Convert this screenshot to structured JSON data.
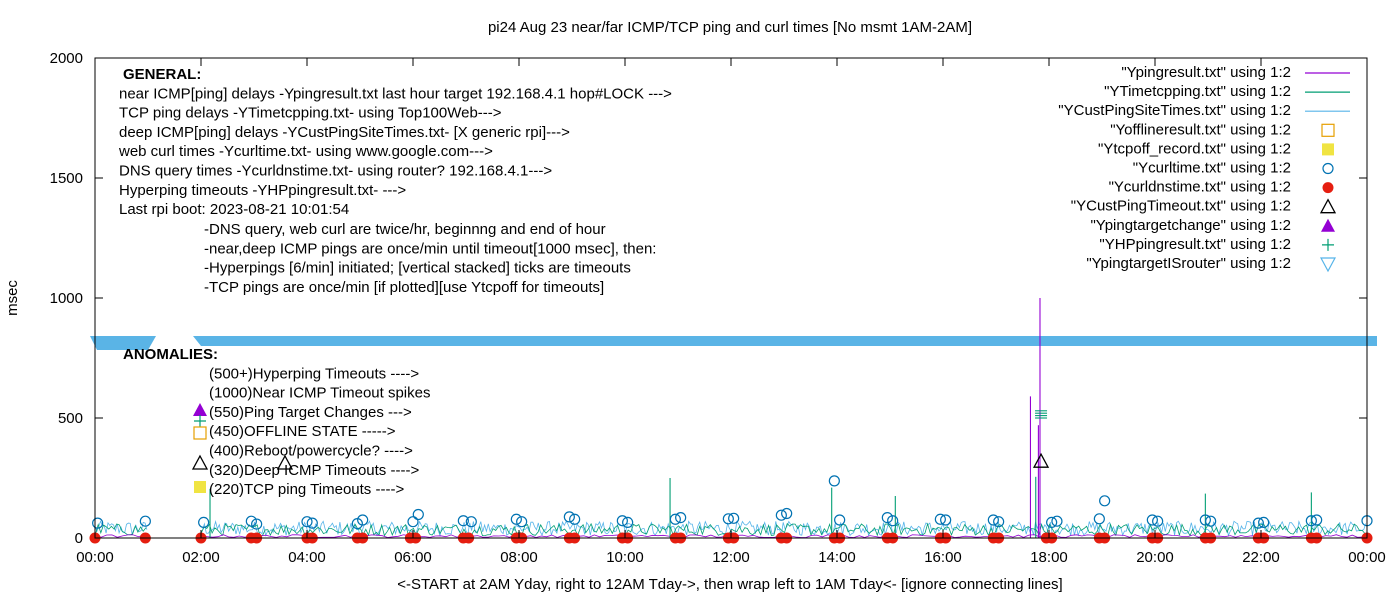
{
  "chart_data": {
    "type": "scatter",
    "title": "pi24 Aug 23  near/far ICMP/TCP ping and curl times [No msmt 1AM-2AM]",
    "xlabel": "<-START at 2AM Yday, right to 12AM Tday->, then wrap left to 1AM Tday<- [ignore connecting lines]",
    "ylabel": "msec",
    "xlim": [
      0,
      24
    ],
    "ylim": [
      0,
      2000
    ],
    "grid": false,
    "x_ticks": [
      "00:00",
      "02:00",
      "04:00",
      "06:00",
      "08:00",
      "10:00",
      "12:00",
      "14:00",
      "16:00",
      "18:00",
      "20:00",
      "22:00",
      "00:00"
    ],
    "y_ticks": [
      0,
      500,
      1000,
      1500,
      2000
    ],
    "legend_position": "top-right",
    "colors": {
      "ping": "#9400d3",
      "tcp": "#009e73",
      "cust": "#56b4e9",
      "offline": "#e69f00",
      "tcpoff": "#f0e442",
      "curl": "#0072b2",
      "dns": "#e51e10",
      "custTimeout": "#000000",
      "targetchange": "#9400d3",
      "hpping": "#009e73",
      "router": "#56b4e9",
      "band": "#5ab4e6"
    },
    "series": [
      {
        "name": "\"Ypingresult.txt\" using 1:2",
        "style": "line",
        "color_key": "ping",
        "spikes": [
          {
            "x": 17.65,
            "y": 590
          },
          {
            "x": 17.83,
            "y": 1000
          },
          {
            "x": 17.8,
            "y": 470
          }
        ]
      },
      {
        "name": "\"YTimetcpping.txt\" using 1:2",
        "style": "line",
        "color_key": "tcp",
        "spikes": [
          {
            "x": 2.17,
            "y": 205
          },
          {
            "x": 10.85,
            "y": 250
          },
          {
            "x": 13.9,
            "y": 210
          },
          {
            "x": 15.1,
            "y": 175
          },
          {
            "x": 17.75,
            "y": 255
          },
          {
            "x": 20.95,
            "y": 185
          },
          {
            "x": 22.95,
            "y": 190
          }
        ]
      },
      {
        "name": "\"YCustPingSiteTimes.txt\" using 1:2",
        "style": "line",
        "color_key": "cust"
      },
      {
        "name": "\"Yofflineresult.txt\" using 1:2",
        "style": "open-square",
        "color_key": "offline",
        "points": []
      },
      {
        "name": "\"Ytcpoff_record.txt\" using 1:2",
        "style": "filled-square",
        "color_key": "tcpoff",
        "points": []
      },
      {
        "name": "\"Ycurltime.txt\" using 1:2",
        "style": "open-circle",
        "color_key": "curl",
        "points": [
          [
            0.05,
            62
          ],
          [
            0.95,
            70
          ],
          [
            2.05,
            65
          ],
          [
            2.95,
            70
          ],
          [
            3.05,
            58
          ],
          [
            4.0,
            68
          ],
          [
            4.1,
            62
          ],
          [
            4.95,
            60
          ],
          [
            5.05,
            75
          ],
          [
            6.0,
            68
          ],
          [
            6.1,
            98
          ],
          [
            6.95,
            72
          ],
          [
            7.1,
            68
          ],
          [
            7.95,
            78
          ],
          [
            8.05,
            68
          ],
          [
            8.95,
            88
          ],
          [
            9.05,
            78
          ],
          [
            9.95,
            72
          ],
          [
            10.05,
            65
          ],
          [
            10.95,
            78
          ],
          [
            11.05,
            85
          ],
          [
            11.95,
            80
          ],
          [
            12.05,
            82
          ],
          [
            12.95,
            95
          ],
          [
            13.05,
            102
          ],
          [
            13.95,
            238
          ],
          [
            14.05,
            75
          ],
          [
            14.95,
            85
          ],
          [
            15.05,
            72
          ],
          [
            15.95,
            78
          ],
          [
            16.05,
            75
          ],
          [
            16.95,
            75
          ],
          [
            17.05,
            68
          ],
          [
            18.05,
            65
          ],
          [
            18.15,
            70
          ],
          [
            18.95,
            80
          ],
          [
            19.05,
            155
          ],
          [
            19.95,
            75
          ],
          [
            20.05,
            70
          ],
          [
            20.95,
            75
          ],
          [
            21.05,
            70
          ],
          [
            21.95,
            62
          ],
          [
            22.05,
            65
          ],
          [
            22.95,
            72
          ],
          [
            23.05,
            75
          ],
          [
            24.0,
            72
          ]
        ]
      },
      {
        "name": "\"Ycurldnstime.txt\" using 1:2",
        "style": "filled-circle",
        "color_key": "dns",
        "points": [
          [
            0.0,
            0
          ],
          [
            0.95,
            0
          ],
          [
            2.0,
            0
          ],
          [
            2.95,
            0
          ],
          [
            3.05,
            0
          ],
          [
            4.0,
            0
          ],
          [
            4.1,
            0
          ],
          [
            4.95,
            0
          ],
          [
            5.05,
            0
          ],
          [
            5.95,
            0
          ],
          [
            6.05,
            0
          ],
          [
            6.95,
            0
          ],
          [
            7.05,
            0
          ],
          [
            7.95,
            0
          ],
          [
            8.05,
            0
          ],
          [
            8.95,
            0
          ],
          [
            9.05,
            0
          ],
          [
            9.95,
            0
          ],
          [
            10.05,
            0
          ],
          [
            10.95,
            0
          ],
          [
            11.05,
            0
          ],
          [
            11.95,
            0
          ],
          [
            12.05,
            0
          ],
          [
            12.95,
            0
          ],
          [
            13.05,
            0
          ],
          [
            13.95,
            0
          ],
          [
            14.05,
            0
          ],
          [
            14.95,
            0
          ],
          [
            15.05,
            0
          ],
          [
            15.95,
            0
          ],
          [
            16.05,
            0
          ],
          [
            16.95,
            0
          ],
          [
            17.05,
            0
          ],
          [
            17.95,
            0
          ],
          [
            18.05,
            0
          ],
          [
            18.95,
            0
          ],
          [
            19.05,
            0
          ],
          [
            19.95,
            0
          ],
          [
            20.05,
            0
          ],
          [
            20.95,
            0
          ],
          [
            21.05,
            0
          ],
          [
            21.95,
            0
          ],
          [
            22.05,
            0
          ],
          [
            22.95,
            0
          ],
          [
            23.05,
            0
          ],
          [
            24.0,
            0
          ]
        ]
      },
      {
        "name": "\"YCustPingTimeout.txt\" using 1:2",
        "style": "open-triangle",
        "color_key": "custTimeout",
        "points": [
          [
            17.85,
            320
          ]
        ]
      },
      {
        "name": "\"Ypingtargetchange\" using 1:2",
        "style": "filled-triangle",
        "color_key": "targetchange",
        "points": []
      },
      {
        "name": "\"YHPpingresult.txt\" using 1:2",
        "style": "plus",
        "color_key": "hpping",
        "points": [
          [
            17.85,
            500
          ],
          [
            17.85,
            510
          ],
          [
            17.85,
            520
          ],
          [
            17.85,
            530
          ]
        ]
      },
      {
        "name": "\"YpingtargetISrouter\" using 1:2",
        "style": "open-invtriangle",
        "color_key": "router",
        "points": []
      }
    ],
    "annotations_general": [
      "GENERAL:",
      "near ICMP[ping] delays -Ypingresult.txt last hour target 192.168.4.1 hop#LOCK --->",
      "TCP ping delays -YTimetcpping.txt- using Top100Web--->",
      "deep ICMP[ping] delays -YCustPingSiteTimes.txt- [X generic rpi]--->",
      "web curl times -Ycurltime.txt- using www.google.com--->",
      "DNS query times -Ycurldnstime.txt- using router? 192.168.4.1--->",
      "Hyperping timeouts -YHPpingresult.txt- --->",
      "Last rpi boot: 2023-08-21 10:01:54"
    ],
    "annotations_notes": [
      "-DNS query, web curl are twice/hr, beginnng and end of hour",
      "-near,deep ICMP pings are once/min until timeout[1000 msec], then:",
      "  -Hyperpings [6/min] initiated; [vertical stacked] ticks are timeouts",
      "-TCP pings are once/min [if plotted][use Ytcpoff for timeouts]"
    ],
    "annotations_anomalies": [
      "ANOMALIES:",
      "(500+)Hyperping Timeouts ---->",
      "(1000)Near ICMP Timeout spikes",
      "(550)Ping Target Changes --->",
      "(450)OFFLINE STATE ----->",
      "(400)Reboot/powercycle? ---->",
      "(320)Deep ICMP Timeouts ---->",
      "(220)TCP ping Timeouts ---->"
    ]
  }
}
